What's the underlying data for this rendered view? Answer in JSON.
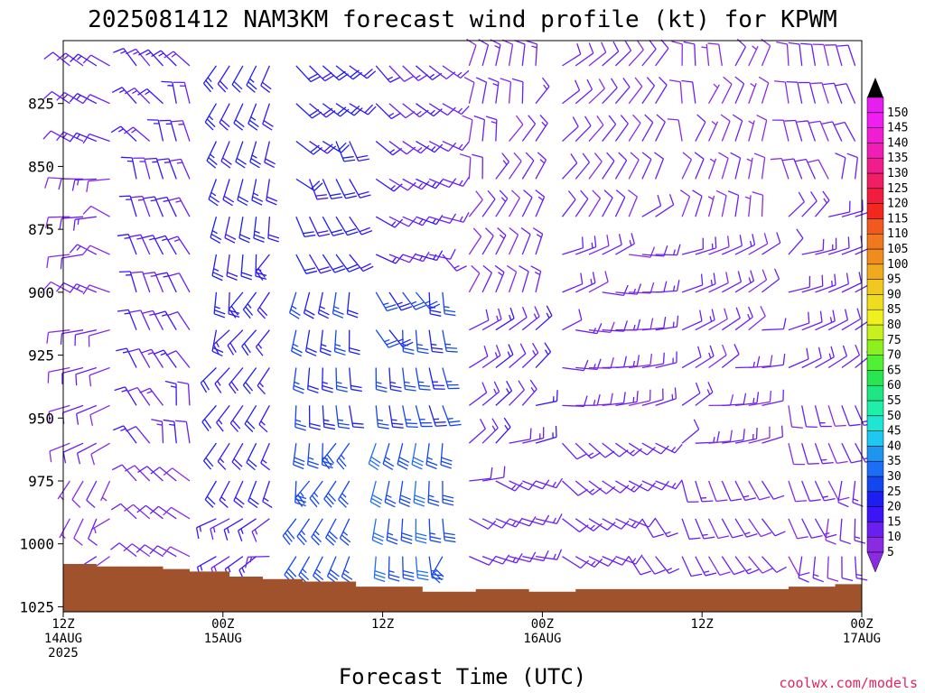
{
  "title": "2025081412 NAM3KM forecast wind profile (kt) for KPWM",
  "xlabel": "Forecast Time (UTC)",
  "credit": "coolwx.com/models",
  "colors": {
    "terrain": "#a0522d",
    "barb_default": "#8a2be2"
  },
  "chart_data": {
    "type": "wind-barb-profile",
    "y_axis": {
      "label": "",
      "unit": "hPa",
      "inverted": true,
      "ylim": [
        1027,
        800
      ],
      "ticks": [
        825,
        850,
        875,
        900,
        925,
        950,
        975,
        1000,
        1025
      ]
    },
    "x_axis": {
      "unit": "hours since 2025-08-14 12Z",
      "xlim": [
        0,
        60
      ],
      "ticks": [
        {
          "hour": 0,
          "l1": "12Z",
          "l2": "14AUG",
          "l3": "2025"
        },
        {
          "hour": 12,
          "l1": "00Z",
          "l2": "15AUG",
          "l3": ""
        },
        {
          "hour": 24,
          "l1": "12Z",
          "l2": "",
          "l3": ""
        },
        {
          "hour": 36,
          "l1": "00Z",
          "l2": "16AUG",
          "l3": ""
        },
        {
          "hour": 48,
          "l1": "12Z",
          "l2": "",
          "l3": ""
        },
        {
          "hour": 60,
          "l1": "00Z",
          "l2": "17AUG",
          "l3": ""
        }
      ]
    },
    "colorbar": {
      "unit": "kt",
      "levels": [
        5,
        10,
        15,
        20,
        25,
        30,
        35,
        40,
        45,
        50,
        55,
        60,
        65,
        70,
        75,
        80,
        85,
        90,
        95,
        100,
        105,
        110,
        115,
        120,
        125,
        130,
        135,
        140,
        145,
        150
      ],
      "colors": [
        "#8a2be2",
        "#6a1ff0",
        "#3c14f5",
        "#1e1ef0",
        "#1446f0",
        "#1e6ef5",
        "#1e96f0",
        "#1ec8f0",
        "#1ee6d2",
        "#1ef0aa",
        "#1ee682",
        "#28e650",
        "#50f032",
        "#8cf01e",
        "#c8f01e",
        "#f0f01e",
        "#f0dc1e",
        "#f0c81e",
        "#f0aa1e",
        "#f08c1e",
        "#f0781e",
        "#f05a1e",
        "#f0281e",
        "#f01e3c",
        "#f01e64",
        "#f01e8c",
        "#f01eb4",
        "#f01ed2",
        "#f01ef0",
        "#e61ef0"
      ]
    },
    "surface_pressure": {
      "hours": [
        0,
        2.5,
        7.5,
        9.5,
        12.5,
        15,
        18,
        22,
        27,
        31,
        35,
        38.5,
        43,
        47,
        54.5,
        58,
        60
      ],
      "values": [
        1008,
        1009,
        1010,
        1011,
        1013,
        1014,
        1015,
        1017,
        1019,
        1018,
        1019,
        1018,
        1018,
        1018,
        1017,
        1016,
        1015
      ]
    },
    "wind_profile": {
      "pressure_levels": [
        810,
        825,
        840,
        855,
        870,
        885,
        900,
        915,
        930,
        945,
        960,
        975,
        990,
        1005,
        1020
      ],
      "time_step_hours": 1,
      "segments": [
        {
          "hours": [
            0,
            4
          ],
          "levels": [
            {
              "p": [
                810,
                840
              ],
              "dir": 300,
              "spd": 10
            },
            {
              "p": [
                855,
                900
              ],
              "dir": 280,
              "spd": 8
            },
            {
              "p": [
                915,
                960
              ],
              "dir": 250,
              "spd": 7
            },
            {
              "p": [
                975,
                1020
              ],
              "dir": 220,
              "spd": 6
            }
          ]
        },
        {
          "hours": [
            5,
            10
          ],
          "levels": [
            {
              "p": [
                810,
                885
              ],
              "dir": 330,
              "spd": 12
            },
            {
              "p": [
                900,
                960
              ],
              "dir": 340,
              "spd": 10
            },
            {
              "p": [
                975,
                1020
              ],
              "dir": 300,
              "spd": 7
            }
          ]
        },
        {
          "hours": [
            11,
            16
          ],
          "levels": [
            {
              "p": [
                810,
                900
              ],
              "dir": 200,
              "spd": 18
            },
            {
              "p": [
                915,
                975
              ],
              "dir": 210,
              "spd": 15
            },
            {
              "p": [
                990,
                1020
              ],
              "dir": 250,
              "spd": 12
            }
          ]
        },
        {
          "hours": [
            17,
            22
          ],
          "levels": [
            {
              "p": [
                810,
                885
              ],
              "dir": 140,
              "spd": 17
            },
            {
              "p": [
                900,
                945
              ],
              "dir": 190,
              "spd": 20
            },
            {
              "p": [
                960,
                1005
              ],
              "dir": 200,
              "spd": 24
            }
          ]
        },
        {
          "hours": [
            23,
            29
          ],
          "levels": [
            {
              "p": [
                810,
                885
              ],
              "dir": 120,
              "spd": 10
            },
            {
              "p": [
                900,
                945
              ],
              "dir": 160,
              "spd": 22
            },
            {
              "p": [
                960,
                1005
              ],
              "dir": 190,
              "spd": 25
            }
          ]
        },
        {
          "hours": [
            30,
            36
          ],
          "levels": [
            {
              "p": [
                810,
                900
              ],
              "dir": 20,
              "spd": 8
            },
            {
              "p": [
                915,
                960
              ],
              "dir": 60,
              "spd": 10
            },
            {
              "p": [
                975,
                1020
              ],
              "dir": 100,
              "spd": 9
            }
          ]
        },
        {
          "hours": [
            37,
            45
          ],
          "levels": [
            {
              "p": [
                810,
                870
              ],
              "dir": 40,
              "spd": 7
            },
            {
              "p": [
                885,
                945
              ],
              "dir": 80,
              "spd": 8
            },
            {
              "p": [
                960,
                1020
              ],
              "dir": 130,
              "spd": 9
            }
          ]
        },
        {
          "hours": [
            46,
            53
          ],
          "levels": [
            {
              "p": [
                810,
                870
              ],
              "dir": 10,
              "spd": 6
            },
            {
              "p": [
                885,
                960
              ],
              "dir": 70,
              "spd": 8
            },
            {
              "p": [
                975,
                1020
              ],
              "dir": 150,
              "spd": 8
            }
          ]
        },
        {
          "hours": [
            54,
            60
          ],
          "levels": [
            {
              "p": [
                810,
                855
              ],
              "dir": 350,
              "spd": 7
            },
            {
              "p": [
                870,
                930
              ],
              "dir": 60,
              "spd": 9
            },
            {
              "p": [
                945,
                1020
              ],
              "dir": 170,
              "spd": 8
            }
          ]
        }
      ]
    }
  }
}
